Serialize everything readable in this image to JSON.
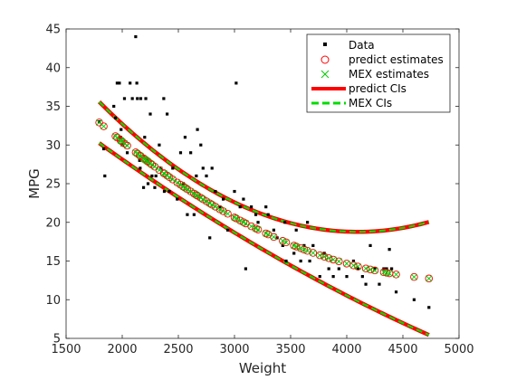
{
  "colors": {
    "data": "#000000",
    "predict_marker": "#ff0000",
    "mex_marker": "#00cc00",
    "predict_ci": "#ff0000",
    "mex_ci": "#00dd00",
    "axis": "#262626"
  },
  "chart_data": {
    "type": "scatter",
    "title": "",
    "xlabel": "Weight",
    "ylabel": "MPG",
    "xlim": [
      1500,
      5000
    ],
    "ylim": [
      5,
      45
    ],
    "xticks": [
      1500,
      2000,
      2500,
      3000,
      3500,
      4000,
      4500,
      5000
    ],
    "yticks": [
      5,
      10,
      15,
      20,
      25,
      30,
      35,
      40,
      45
    ],
    "grid": false,
    "legend_position": "top-right",
    "legend": [
      "Data",
      "predict estimates",
      "MEX estimates",
      "predict CIs",
      "MEX CIs"
    ],
    "series": [
      {
        "name": "Data",
        "marker": "square",
        "points": [
          [
            1795,
            33
          ],
          [
            1835,
            29.5
          ],
          [
            1845,
            26
          ],
          [
            1925,
            35
          ],
          [
            1940,
            33.5
          ],
          [
            1955,
            38
          ],
          [
            1975,
            38
          ],
          [
            1985,
            31
          ],
          [
            1990,
            32
          ],
          [
            2000,
            30
          ],
          [
            2020,
            36
          ],
          [
            2045,
            29
          ],
          [
            2070,
            38
          ],
          [
            2090,
            36
          ],
          [
            2120,
            44
          ],
          [
            2130,
            38
          ],
          [
            2135,
            36
          ],
          [
            2155,
            28
          ],
          [
            2160,
            27
          ],
          [
            2165,
            36
          ],
          [
            2190,
            24.5
          ],
          [
            2200,
            31
          ],
          [
            2210,
            36
          ],
          [
            2220,
            28
          ],
          [
            2230,
            25
          ],
          [
            2250,
            34
          ],
          [
            2265,
            26
          ],
          [
            2290,
            24.5
          ],
          [
            2300,
            26
          ],
          [
            2330,
            30
          ],
          [
            2345,
            27
          ],
          [
            2370,
            36
          ],
          [
            2375,
            24
          ],
          [
            2400,
            34
          ],
          [
            2420,
            24
          ],
          [
            2450,
            27
          ],
          [
            2490,
            23
          ],
          [
            2520,
            29
          ],
          [
            2545,
            25
          ],
          [
            2560,
            31
          ],
          [
            2580,
            21
          ],
          [
            2610,
            29
          ],
          [
            2640,
            21
          ],
          [
            2660,
            26
          ],
          [
            2670,
            32
          ],
          [
            2700,
            30
          ],
          [
            2720,
            27
          ],
          [
            2750,
            26
          ],
          [
            2780,
            18
          ],
          [
            2800,
            27
          ],
          [
            2830,
            24
          ],
          [
            2870,
            22
          ],
          [
            2900,
            23
          ],
          [
            2940,
            19
          ],
          [
            3000,
            24
          ],
          [
            3015,
            38
          ],
          [
            3050,
            22
          ],
          [
            3080,
            23
          ],
          [
            3100,
            14
          ],
          [
            3150,
            22
          ],
          [
            3190,
            21
          ],
          [
            3210,
            20
          ],
          [
            3280,
            22
          ],
          [
            3300,
            21
          ],
          [
            3350,
            19
          ],
          [
            3380,
            18
          ],
          [
            3430,
            17
          ],
          [
            3450,
            20
          ],
          [
            3460,
            15
          ],
          [
            3530,
            16
          ],
          [
            3550,
            19
          ],
          [
            3590,
            15
          ],
          [
            3620,
            17
          ],
          [
            3650,
            20
          ],
          [
            3670,
            15
          ],
          [
            3700,
            17
          ],
          [
            3760,
            13
          ],
          [
            3800,
            16
          ],
          [
            3840,
            14
          ],
          [
            3880,
            13
          ],
          [
            3930,
            14
          ],
          [
            4000,
            13
          ],
          [
            4060,
            15
          ],
          [
            4100,
            14
          ],
          [
            4140,
            13
          ],
          [
            4170,
            12
          ],
          [
            4210,
            17
          ],
          [
            4250,
            14
          ],
          [
            4290,
            12
          ],
          [
            4330,
            14
          ],
          [
            4355,
            14
          ],
          [
            4380,
            16.5
          ],
          [
            4400,
            14
          ],
          [
            4440,
            11
          ],
          [
            4600,
            10
          ],
          [
            4732,
            9
          ]
        ]
      },
      {
        "name": "predict estimates",
        "marker": "circle",
        "x": [
          1795,
          1835,
          1940,
          1955,
          1985,
          1990,
          2000,
          2020,
          2045,
          2120,
          2135,
          2155,
          2165,
          2190,
          2200,
          2210,
          2220,
          2230,
          2250,
          2265,
          2290,
          2330,
          2370,
          2375,
          2400,
          2420,
          2450,
          2490,
          2520,
          2545,
          2560,
          2580,
          2610,
          2640,
          2660,
          2670,
          2700,
          2720,
          2750,
          2780,
          2800,
          2830,
          2870,
          2900,
          2940,
          3000,
          3015,
          3050,
          3080,
          3100,
          3150,
          3190,
          3210,
          3280,
          3300,
          3350,
          3430,
          3460,
          3530,
          3550,
          3590,
          3620,
          3650,
          3700,
          3760,
          3800,
          3840,
          3880,
          3930,
          4000,
          4060,
          4100,
          4170,
          4210,
          4250,
          4330,
          4355,
          4380,
          4440,
          4600,
          4732
        ]
      },
      {
        "name": "MEX estimates",
        "marker": "x",
        "same_x_as": "predict estimates"
      },
      {
        "name": "predict CIs",
        "style": "solid",
        "x_range": [
          1795,
          4732
        ]
      },
      {
        "name": "MEX CIs",
        "style": "dashed",
        "x_range": [
          1795,
          4732
        ]
      }
    ],
    "fit_model": {
      "form": "quadratic",
      "coefficients": [
        61.55,
        -0.0194,
        1.92e-06
      ]
    },
    "ci_halfwidth_model": {
      "form": "quadratic",
      "coefficients": [
        10.45,
        -0.00658,
        1.25e-06
      ]
    }
  }
}
